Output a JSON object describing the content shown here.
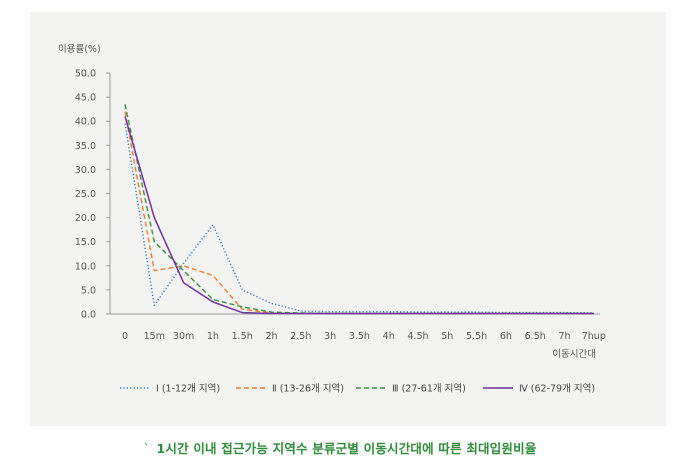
{
  "chart_data": {
    "type": "line",
    "title": "",
    "ylabel": "이용률(%)",
    "xlabel": "이동시간대",
    "ylim": [
      0,
      50
    ],
    "yticks": [
      "0.0",
      "5.0",
      "10.0",
      "15.0",
      "20.0",
      "25.0",
      "30.0",
      "35.0",
      "40.0",
      "45.0",
      "50.0"
    ],
    "categories": [
      "0",
      "15m",
      "30m",
      "1h",
      "1.5h",
      "2h",
      "2.5h",
      "3h",
      "3.5h",
      "4h",
      "4.5h",
      "5h",
      "5.5h",
      "6h",
      "6.5h",
      "7h",
      "7hup"
    ],
    "grid": false,
    "legend_position": "bottom",
    "series": [
      {
        "name": "Ⅰ (1-12개 지역)",
        "color": "#2e75b6",
        "dash": "dotted",
        "values": [
          39.5,
          1.8,
          10.5,
          18.5,
          5.0,
          2.2,
          0.6,
          0.5,
          0.5,
          0.5,
          0.4,
          0.4,
          0.4,
          0.3,
          0.3,
          0.3,
          0.2
        ]
      },
      {
        "name": "Ⅱ (13-26개 지역)",
        "color": "#ed7d31",
        "dash": "dashed",
        "values": [
          42.0,
          9.0,
          10.0,
          8.0,
          1.0,
          0.2,
          0.1,
          0.1,
          0.1,
          0.1,
          0.1,
          0.1,
          0.1,
          0.1,
          0.1,
          0.1,
          0.1
        ]
      },
      {
        "name": "Ⅲ (27-61개 지역)",
        "color": "#3a8e3a",
        "dash": "dashed",
        "values": [
          43.5,
          15.0,
          9.0,
          3.0,
          1.5,
          0.4,
          0.2,
          0.1,
          0.1,
          0.1,
          0.1,
          0.1,
          0.1,
          0.1,
          0.1,
          0.1,
          0.1
        ]
      },
      {
        "name": "Ⅳ (62-79개 지역)",
        "color": "#7030a0",
        "dash": "solid",
        "values": [
          41.0,
          20.0,
          6.5,
          2.5,
          0.3,
          0.1,
          0.1,
          0.1,
          0.1,
          0.1,
          0.1,
          0.1,
          0.1,
          0.1,
          0.1,
          0.1,
          0.1
        ]
      }
    ]
  },
  "caption": {
    "mark": "`",
    "text": "1시간 이내 접근가능 지역수 분류군별 이동시간대에 따른 최대입원비율"
  }
}
